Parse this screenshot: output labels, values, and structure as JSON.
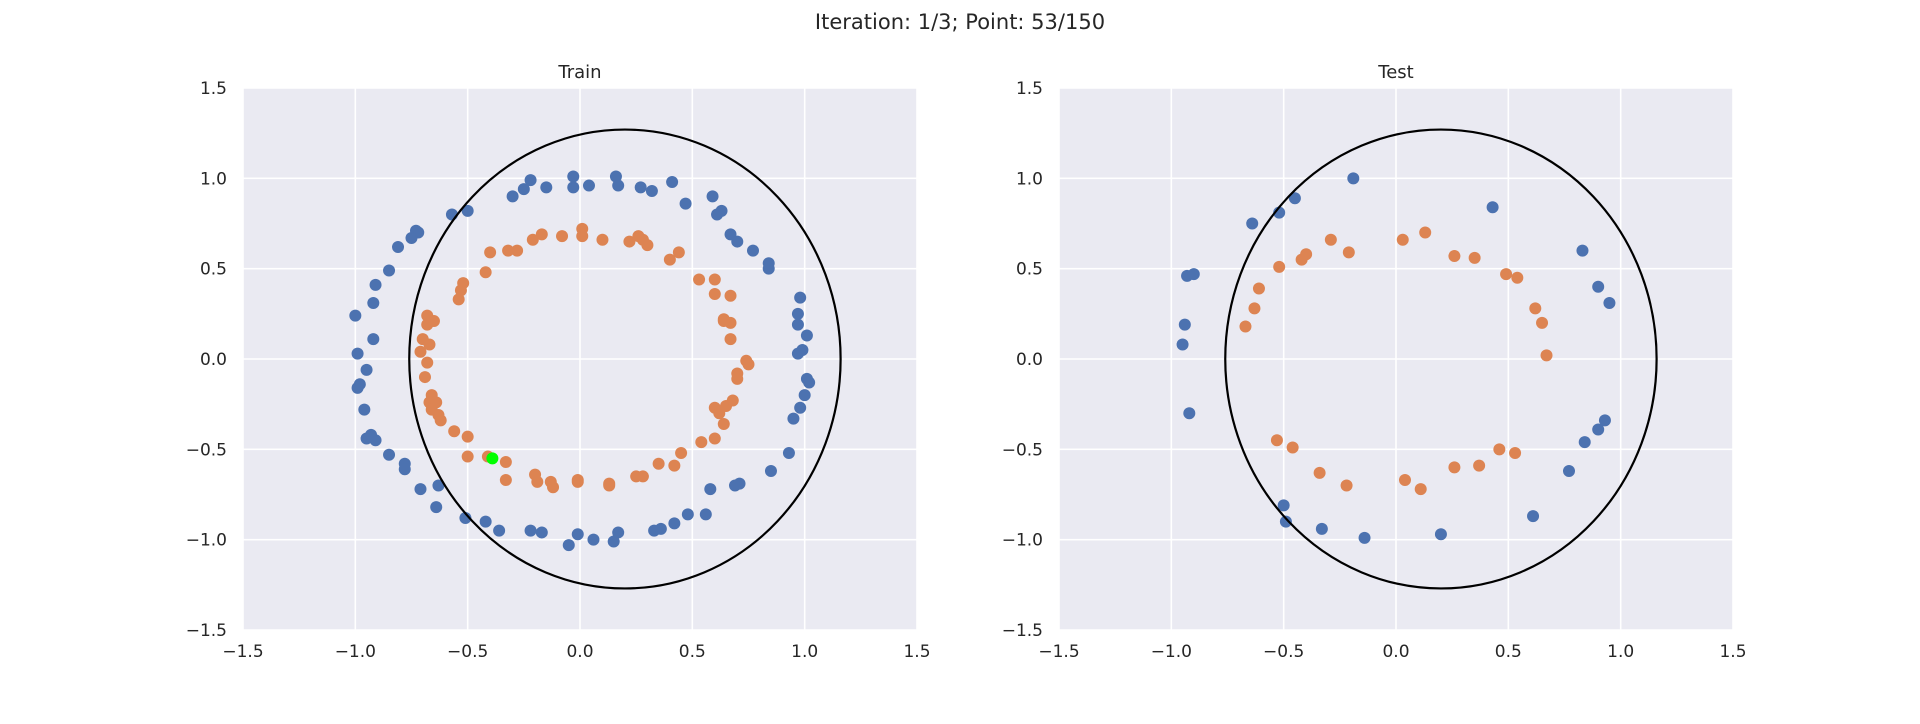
{
  "suptitle": "Iteration: 1/3; Point: 53/150",
  "colors": {
    "background": "#eaeaf2",
    "grid": "#ffffff",
    "class_outer": "#4c72b0",
    "class_inner": "#dd8452",
    "highlight": "#00ff00",
    "boundary": "#000000"
  },
  "chart_data": [
    {
      "type": "scatter",
      "title": "Train",
      "xlabel": "",
      "ylabel": "",
      "xlim": [
        -1.5,
        1.5
      ],
      "ylim": [
        -1.5,
        1.5
      ],
      "xticks": [
        "−1.5",
        "−1.0",
        "−0.5",
        "0.0",
        "0.5",
        "1.0",
        "1.5"
      ],
      "yticks": [
        "1.5",
        "1.0",
        "0.5",
        "0.0",
        "−0.5",
        "−1.0",
        "−1.5"
      ],
      "grid": true,
      "boundary": {
        "shape": "ellipse",
        "cx": 0.2,
        "cy": 0.0,
        "rx": 0.96,
        "ry": 1.27
      },
      "highlight_point": [
        -0.39,
        -0.55
      ],
      "series": [
        {
          "color": "#4c72b0",
          "points": [
            [
              -1.0,
              0.24
            ],
            [
              -0.91,
              0.41
            ],
            [
              -0.92,
              0.31
            ],
            [
              -0.92,
              0.11
            ],
            [
              -0.99,
              0.03
            ],
            [
              -0.95,
              -0.06
            ],
            [
              -0.98,
              -0.14
            ],
            [
              -0.99,
              -0.16
            ],
            [
              -0.96,
              -0.28
            ],
            [
              -0.95,
              -0.44
            ],
            [
              -0.93,
              -0.42
            ],
            [
              -0.91,
              -0.45
            ],
            [
              -0.85,
              -0.53
            ],
            [
              -0.78,
              -0.58
            ],
            [
              -0.78,
              -0.61
            ],
            [
              -0.71,
              -0.72
            ],
            [
              -0.64,
              -0.82
            ],
            [
              -0.63,
              -0.7
            ],
            [
              -0.51,
              -0.88
            ],
            [
              -0.42,
              -0.9
            ],
            [
              -0.36,
              -0.95
            ],
            [
              -0.22,
              -0.95
            ],
            [
              -0.17,
              -0.96
            ],
            [
              -0.05,
              -1.03
            ],
            [
              -0.01,
              -0.97
            ],
            [
              0.06,
              -1.0
            ],
            [
              0.15,
              -1.01
            ],
            [
              0.17,
              -0.96
            ],
            [
              0.33,
              -0.95
            ],
            [
              0.36,
              -0.94
            ],
            [
              0.42,
              -0.91
            ],
            [
              0.48,
              -0.86
            ],
            [
              0.56,
              -0.86
            ],
            [
              0.58,
              -0.72
            ],
            [
              0.69,
              -0.7
            ],
            [
              0.71,
              -0.69
            ],
            [
              0.85,
              -0.62
            ],
            [
              0.93,
              -0.52
            ],
            [
              0.95,
              -0.33
            ],
            [
              0.98,
              -0.27
            ],
            [
              1.0,
              -0.2
            ],
            [
              1.01,
              -0.11
            ],
            [
              1.02,
              -0.13
            ],
            [
              0.97,
              0.03
            ],
            [
              0.99,
              0.05
            ],
            [
              1.01,
              0.13
            ],
            [
              0.97,
              0.19
            ],
            [
              0.97,
              0.25
            ],
            [
              0.98,
              0.34
            ],
            [
              0.84,
              0.53
            ],
            [
              0.84,
              0.5
            ],
            [
              0.77,
              0.6
            ],
            [
              0.7,
              0.65
            ],
            [
              0.67,
              0.69
            ],
            [
              0.61,
              0.8
            ],
            [
              0.63,
              0.82
            ],
            [
              0.59,
              0.9
            ],
            [
              0.47,
              0.86
            ],
            [
              0.41,
              0.98
            ],
            [
              0.32,
              0.93
            ],
            [
              0.27,
              0.95
            ],
            [
              0.16,
              1.01
            ],
            [
              0.17,
              0.96
            ],
            [
              0.04,
              0.96
            ],
            [
              -0.03,
              0.95
            ],
            [
              -0.03,
              1.01
            ],
            [
              -0.15,
              0.95
            ],
            [
              -0.22,
              0.99
            ],
            [
              -0.25,
              0.94
            ],
            [
              -0.3,
              0.9
            ],
            [
              -0.5,
              0.82
            ],
            [
              -0.57,
              0.8
            ],
            [
              -0.72,
              0.7
            ],
            [
              -0.73,
              0.71
            ],
            [
              -0.75,
              0.67
            ],
            [
              -0.81,
              0.62
            ],
            [
              -0.85,
              0.49
            ]
          ]
        },
        {
          "color": "#dd8452",
          "points": [
            [
              -0.68,
              0.24
            ],
            [
              -0.65,
              0.21
            ],
            [
              -0.68,
              0.19
            ],
            [
              -0.7,
              0.11
            ],
            [
              -0.67,
              0.08
            ],
            [
              -0.71,
              0.04
            ],
            [
              -0.68,
              -0.02
            ],
            [
              -0.69,
              -0.1
            ],
            [
              -0.66,
              -0.2
            ],
            [
              -0.67,
              -0.24
            ],
            [
              -0.64,
              -0.24
            ],
            [
              -0.66,
              -0.28
            ],
            [
              -0.63,
              -0.31
            ],
            [
              -0.62,
              -0.34
            ],
            [
              -0.56,
              -0.4
            ],
            [
              -0.5,
              -0.43
            ],
            [
              -0.5,
              -0.54
            ],
            [
              -0.41,
              -0.54
            ],
            [
              -0.33,
              -0.57
            ],
            [
              -0.33,
              -0.67
            ],
            [
              -0.2,
              -0.64
            ],
            [
              -0.19,
              -0.68
            ],
            [
              -0.13,
              -0.68
            ],
            [
              -0.12,
              -0.71
            ],
            [
              -0.01,
              -0.68
            ],
            [
              -0.01,
              -0.67
            ],
            [
              0.13,
              -0.69
            ],
            [
              0.13,
              -0.7
            ],
            [
              0.25,
              -0.65
            ],
            [
              0.28,
              -0.65
            ],
            [
              0.35,
              -0.58
            ],
            [
              0.42,
              -0.59
            ],
            [
              0.45,
              -0.52
            ],
            [
              0.54,
              -0.46
            ],
            [
              0.6,
              -0.44
            ],
            [
              0.6,
              -0.27
            ],
            [
              0.64,
              -0.36
            ],
            [
              0.62,
              -0.3
            ],
            [
              0.65,
              -0.26
            ],
            [
              0.68,
              -0.23
            ],
            [
              0.7,
              -0.08
            ],
            [
              0.7,
              -0.11
            ],
            [
              0.74,
              -0.01
            ],
            [
              0.75,
              -0.03
            ],
            [
              0.67,
              0.11
            ],
            [
              0.67,
              0.2
            ],
            [
              0.64,
              0.21
            ],
            [
              0.64,
              0.22
            ],
            [
              0.67,
              0.35
            ],
            [
              0.6,
              0.36
            ],
            [
              0.6,
              0.44
            ],
            [
              0.53,
              0.44
            ],
            [
              0.4,
              0.55
            ],
            [
              0.44,
              0.59
            ],
            [
              0.3,
              0.63
            ],
            [
              0.28,
              0.66
            ],
            [
              0.26,
              0.68
            ],
            [
              0.22,
              0.65
            ],
            [
              0.1,
              0.66
            ],
            [
              0.01,
              0.68
            ],
            [
              0.01,
              0.72
            ],
            [
              -0.08,
              0.68
            ],
            [
              -0.17,
              0.69
            ],
            [
              -0.21,
              0.66
            ],
            [
              -0.28,
              0.6
            ],
            [
              -0.32,
              0.6
            ],
            [
              -0.4,
              0.59
            ],
            [
              -0.42,
              0.48
            ],
            [
              -0.52,
              0.42
            ],
            [
              -0.53,
              0.38
            ],
            [
              -0.54,
              0.33
            ]
          ]
        }
      ]
    },
    {
      "type": "scatter",
      "title": "Test",
      "xlabel": "",
      "ylabel": "",
      "xlim": [
        -1.5,
        1.5
      ],
      "ylim": [
        -1.5,
        1.5
      ],
      "xticks": [
        "−1.5",
        "−1.0",
        "−0.5",
        "0.0",
        "0.5",
        "1.0",
        "1.5"
      ],
      "yticks": [
        "1.5",
        "1.0",
        "0.5",
        "0.0",
        "−0.5",
        "−1.0",
        "−1.5"
      ],
      "grid": true,
      "boundary": {
        "shape": "ellipse",
        "cx": 0.2,
        "cy": 0.0,
        "rx": 0.96,
        "ry": 1.27
      },
      "series": [
        {
          "color": "#4c72b0",
          "points": [
            [
              -0.19,
              1.0
            ],
            [
              -0.45,
              0.89
            ],
            [
              -0.52,
              0.81
            ],
            [
              -0.64,
              0.75
            ],
            [
              -0.93,
              0.46
            ],
            [
              -0.9,
              0.47
            ],
            [
              -0.94,
              0.19
            ],
            [
              -0.95,
              0.08
            ],
            [
              -0.92,
              -0.3
            ],
            [
              -0.5,
              -0.81
            ],
            [
              -0.49,
              -0.9
            ],
            [
              -0.33,
              -0.94
            ],
            [
              -0.14,
              -0.99
            ],
            [
              0.2,
              -0.97
            ],
            [
              0.43,
              0.84
            ],
            [
              0.83,
              0.6
            ],
            [
              0.9,
              0.4
            ],
            [
              0.95,
              0.31
            ],
            [
              0.93,
              -0.34
            ],
            [
              0.9,
              -0.39
            ],
            [
              0.84,
              -0.46
            ],
            [
              0.77,
              -0.62
            ],
            [
              0.61,
              -0.87
            ]
          ]
        },
        {
          "color": "#dd8452",
          "points": [
            [
              -0.29,
              0.66
            ],
            [
              -0.4,
              0.58
            ],
            [
              -0.42,
              0.55
            ],
            [
              -0.21,
              0.59
            ],
            [
              -0.52,
              0.51
            ],
            [
              -0.61,
              0.39
            ],
            [
              -0.63,
              0.28
            ],
            [
              -0.67,
              0.18
            ],
            [
              0.03,
              0.66
            ],
            [
              0.13,
              0.7
            ],
            [
              0.26,
              0.57
            ],
            [
              0.35,
              0.56
            ],
            [
              0.49,
              0.47
            ],
            [
              0.54,
              0.45
            ],
            [
              0.62,
              0.28
            ],
            [
              0.65,
              0.2
            ],
            [
              0.67,
              0.02
            ],
            [
              -0.53,
              -0.45
            ],
            [
              -0.46,
              -0.49
            ],
            [
              -0.34,
              -0.63
            ],
            [
              -0.22,
              -0.7
            ],
            [
              0.04,
              -0.67
            ],
            [
              0.11,
              -0.72
            ],
            [
              0.26,
              -0.6
            ],
            [
              0.37,
              -0.59
            ],
            [
              0.46,
              -0.5
            ],
            [
              0.53,
              -0.52
            ]
          ]
        }
      ]
    }
  ]
}
